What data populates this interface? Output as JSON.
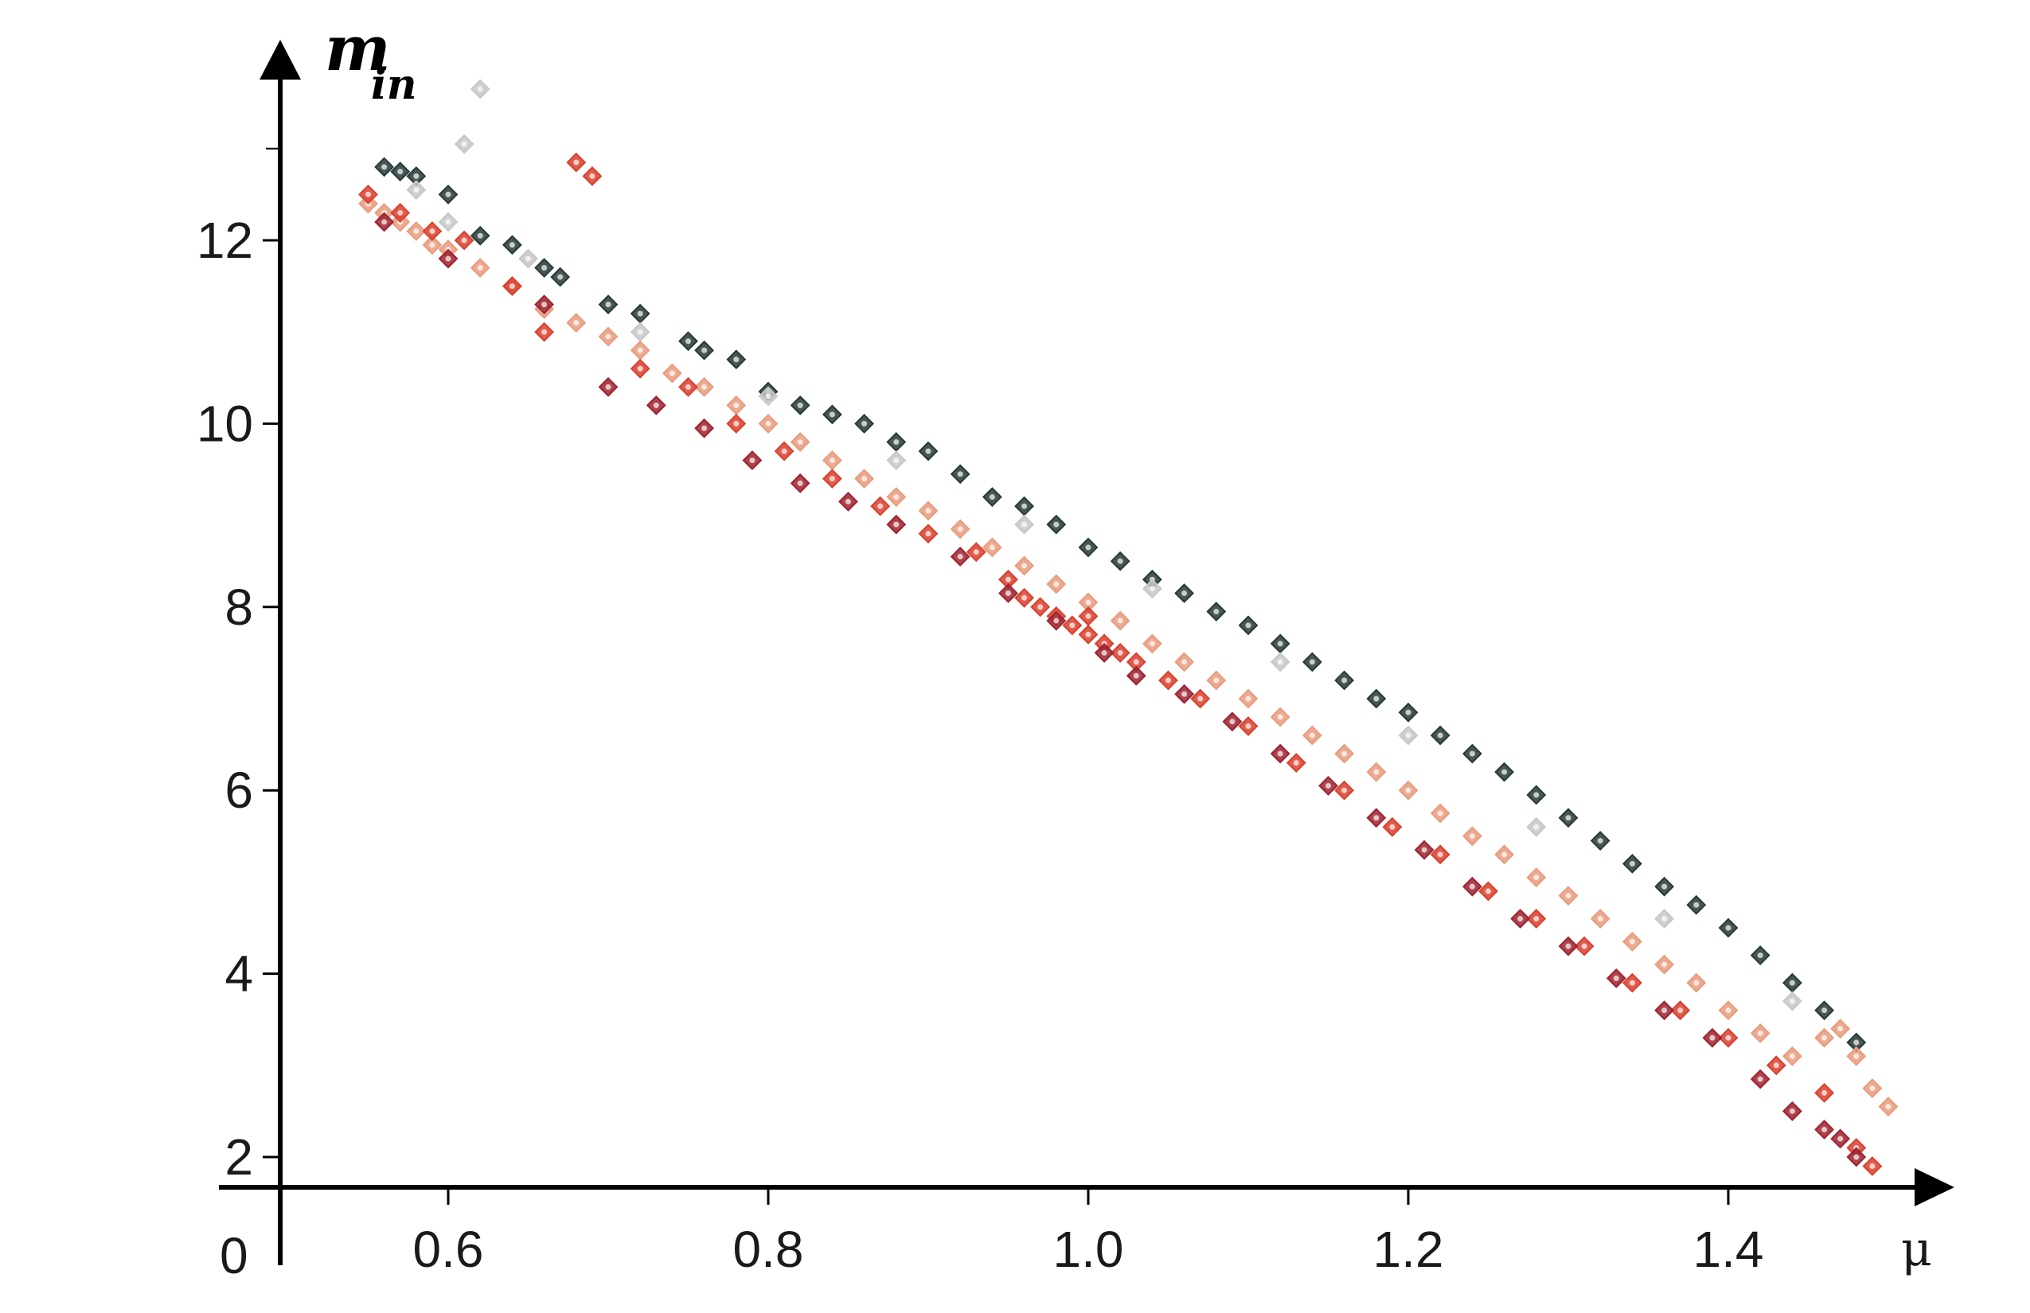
{
  "chart_data": {
    "type": "scatter",
    "title": "",
    "xlabel": "μ",
    "ylabel_main": "m",
    "ylabel_sub": "in",
    "origin_label": "0",
    "xlim": [
      0.55,
      1.5
    ],
    "ylim": [
      1.6,
      13.5
    ],
    "x_ticks": [
      0.6,
      0.8,
      1.0,
      1.2,
      1.4
    ],
    "x_tick_labels": [
      "0.6",
      "0.8",
      "1.0",
      "1.2",
      "1.4"
    ],
    "y_ticks": [
      2,
      4,
      6,
      8,
      10,
      12
    ],
    "y_tick_labels": [
      "2",
      "4",
      "6",
      "8",
      "10",
      "12"
    ],
    "grid": false,
    "legend": "none",
    "series": [
      {
        "color": "#263a38",
        "points": [
          [
            0.56,
            12.8
          ],
          [
            0.57,
            12.75
          ],
          [
            0.58,
            12.7
          ],
          [
            0.6,
            12.5
          ],
          [
            0.62,
            12.05
          ],
          [
            0.64,
            11.95
          ],
          [
            0.66,
            11.7
          ],
          [
            0.67,
            11.6
          ],
          [
            0.7,
            11.3
          ],
          [
            0.72,
            11.2
          ],
          [
            0.75,
            10.9
          ],
          [
            0.76,
            10.8
          ],
          [
            0.78,
            10.7
          ],
          [
            0.8,
            10.35
          ],
          [
            0.82,
            10.2
          ],
          [
            0.84,
            10.1
          ],
          [
            0.86,
            10.0
          ],
          [
            0.88,
            9.8
          ],
          [
            0.9,
            9.7
          ],
          [
            0.92,
            9.45
          ],
          [
            0.94,
            9.2
          ],
          [
            0.96,
            9.1
          ],
          [
            0.98,
            8.9
          ],
          [
            1.0,
            8.65
          ],
          [
            1.02,
            8.5
          ],
          [
            1.04,
            8.3
          ],
          [
            1.06,
            8.15
          ],
          [
            1.08,
            7.95
          ],
          [
            1.1,
            7.8
          ],
          [
            1.12,
            7.6
          ],
          [
            1.14,
            7.4
          ],
          [
            1.16,
            7.2
          ],
          [
            1.18,
            7.0
          ],
          [
            1.2,
            6.85
          ],
          [
            1.22,
            6.6
          ],
          [
            1.24,
            6.4
          ],
          [
            1.26,
            6.2
          ],
          [
            1.28,
            5.95
          ],
          [
            1.3,
            5.7
          ],
          [
            1.32,
            5.45
          ],
          [
            1.34,
            5.2
          ],
          [
            1.36,
            4.95
          ],
          [
            1.38,
            4.75
          ],
          [
            1.4,
            4.5
          ],
          [
            1.42,
            4.2
          ],
          [
            1.44,
            3.9
          ],
          [
            1.46,
            3.6
          ],
          [
            1.48,
            3.25
          ]
        ]
      },
      {
        "color": "#c7c7c7",
        "points": [
          [
            0.62,
            13.65
          ],
          [
            0.61,
            13.05
          ],
          [
            0.58,
            12.55
          ],
          [
            0.6,
            12.2
          ],
          [
            0.65,
            11.8
          ],
          [
            0.72,
            11.0
          ],
          [
            0.8,
            10.3
          ],
          [
            0.88,
            9.6
          ],
          [
            0.96,
            8.9
          ],
          [
            1.04,
            8.2
          ],
          [
            1.12,
            7.4
          ],
          [
            1.2,
            6.6
          ],
          [
            1.28,
            5.6
          ],
          [
            1.36,
            4.6
          ],
          [
            1.44,
            3.7
          ]
        ]
      },
      {
        "color": "#e89c7e",
        "points": [
          [
            0.55,
            12.4
          ],
          [
            0.56,
            12.3
          ],
          [
            0.57,
            12.2
          ],
          [
            0.58,
            12.1
          ],
          [
            0.59,
            11.95
          ],
          [
            0.6,
            11.9
          ],
          [
            0.62,
            11.7
          ],
          [
            0.64,
            11.5
          ],
          [
            0.66,
            11.25
          ],
          [
            0.68,
            11.1
          ],
          [
            0.7,
            10.95
          ],
          [
            0.72,
            10.8
          ],
          [
            0.74,
            10.55
          ],
          [
            0.76,
            10.4
          ],
          [
            0.78,
            10.2
          ],
          [
            0.8,
            10.0
          ],
          [
            0.82,
            9.8
          ],
          [
            0.84,
            9.6
          ],
          [
            0.86,
            9.4
          ],
          [
            0.88,
            9.2
          ],
          [
            0.9,
            9.05
          ],
          [
            0.92,
            8.85
          ],
          [
            0.94,
            8.65
          ],
          [
            0.96,
            8.45
          ],
          [
            0.98,
            8.25
          ],
          [
            1.0,
            8.05
          ],
          [
            1.02,
            7.85
          ],
          [
            1.04,
            7.6
          ],
          [
            1.06,
            7.4
          ],
          [
            1.08,
            7.2
          ],
          [
            1.1,
            7.0
          ],
          [
            1.12,
            6.8
          ],
          [
            1.14,
            6.6
          ],
          [
            1.16,
            6.4
          ],
          [
            1.18,
            6.2
          ],
          [
            1.2,
            6.0
          ],
          [
            1.22,
            5.75
          ],
          [
            1.24,
            5.5
          ],
          [
            1.26,
            5.3
          ],
          [
            1.28,
            5.05
          ],
          [
            1.3,
            4.85
          ],
          [
            1.32,
            4.6
          ],
          [
            1.34,
            4.35
          ],
          [
            1.36,
            4.1
          ],
          [
            1.38,
            3.9
          ],
          [
            1.4,
            3.6
          ],
          [
            1.42,
            3.35
          ],
          [
            1.44,
            3.1
          ],
          [
            1.46,
            3.3
          ],
          [
            1.47,
            3.4
          ],
          [
            1.48,
            3.1
          ],
          [
            1.49,
            2.75
          ],
          [
            1.5,
            2.55
          ]
        ]
      },
      {
        "color": "#d9402e",
        "points": [
          [
            0.55,
            12.5
          ],
          [
            0.57,
            12.3
          ],
          [
            0.59,
            12.1
          ],
          [
            0.61,
            12.0
          ],
          [
            0.64,
            11.5
          ],
          [
            0.66,
            11.0
          ],
          [
            0.68,
            12.85
          ],
          [
            0.69,
            12.7
          ],
          [
            0.72,
            10.6
          ],
          [
            0.75,
            10.4
          ],
          [
            0.78,
            10.0
          ],
          [
            0.81,
            9.7
          ],
          [
            0.84,
            9.4
          ],
          [
            0.87,
            9.1
          ],
          [
            0.9,
            8.8
          ],
          [
            0.93,
            8.6
          ],
          [
            0.95,
            8.3
          ],
          [
            0.96,
            8.1
          ],
          [
            0.97,
            8.0
          ],
          [
            0.98,
            7.9
          ],
          [
            0.99,
            7.8
          ],
          [
            1.0,
            7.7
          ],
          [
            1.0,
            7.9
          ],
          [
            1.01,
            7.6
          ],
          [
            1.02,
            7.5
          ],
          [
            1.03,
            7.4
          ],
          [
            1.05,
            7.2
          ],
          [
            1.07,
            7.0
          ],
          [
            1.1,
            6.7
          ],
          [
            1.13,
            6.3
          ],
          [
            1.16,
            6.0
          ],
          [
            1.19,
            5.6
          ],
          [
            1.22,
            5.3
          ],
          [
            1.25,
            4.9
          ],
          [
            1.28,
            4.6
          ],
          [
            1.31,
            4.3
          ],
          [
            1.34,
            3.9
          ],
          [
            1.37,
            3.6
          ],
          [
            1.4,
            3.3
          ],
          [
            1.43,
            3.0
          ],
          [
            1.46,
            2.7
          ],
          [
            1.48,
            2.1
          ],
          [
            1.49,
            1.9
          ]
        ]
      },
      {
        "color": "#9e2230",
        "points": [
          [
            0.56,
            12.2
          ],
          [
            0.6,
            11.8
          ],
          [
            0.66,
            11.3
          ],
          [
            0.7,
            10.4
          ],
          [
            0.73,
            10.2
          ],
          [
            0.76,
            9.95
          ],
          [
            0.79,
            9.6
          ],
          [
            0.82,
            9.35
          ],
          [
            0.85,
            9.15
          ],
          [
            0.88,
            8.9
          ],
          [
            0.92,
            8.55
          ],
          [
            0.95,
            8.15
          ],
          [
            0.98,
            7.85
          ],
          [
            1.01,
            7.5
          ],
          [
            1.03,
            7.25
          ],
          [
            1.06,
            7.05
          ],
          [
            1.09,
            6.75
          ],
          [
            1.12,
            6.4
          ],
          [
            1.15,
            6.05
          ],
          [
            1.18,
            5.7
          ],
          [
            1.21,
            5.35
          ],
          [
            1.24,
            4.95
          ],
          [
            1.27,
            4.6
          ],
          [
            1.3,
            4.3
          ],
          [
            1.33,
            3.95
          ],
          [
            1.36,
            3.6
          ],
          [
            1.39,
            3.3
          ],
          [
            1.42,
            2.85
          ],
          [
            1.44,
            2.5
          ],
          [
            1.46,
            2.3
          ],
          [
            1.47,
            2.2
          ],
          [
            1.48,
            2.0
          ]
        ]
      }
    ]
  }
}
